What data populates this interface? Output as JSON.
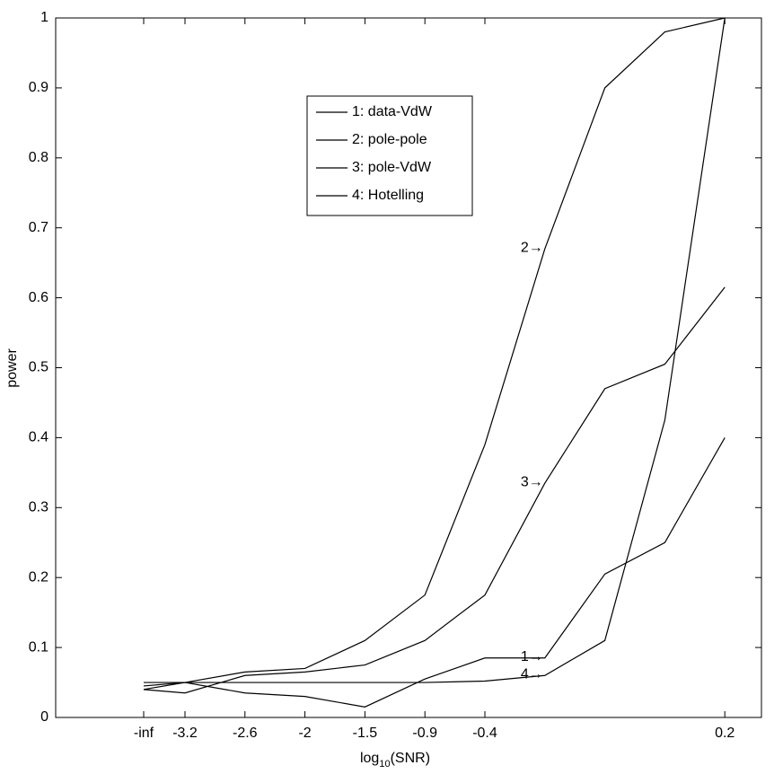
{
  "chart_data": {
    "type": "line",
    "xlabel": {
      "main": "log",
      "sub": "10",
      "rest": "(SNR)"
    },
    "ylabel": "power",
    "categories": [
      "-inf",
      "-3.2",
      "-2.6",
      "-2",
      "-1.5",
      "-0.9",
      "-0.4",
      null,
      null,
      null,
      "0.2"
    ],
    "ylim": [
      0,
      1
    ],
    "yticks": [
      0,
      0.1,
      0.2,
      0.3,
      0.4,
      0.5,
      0.6,
      0.7,
      0.8,
      0.9,
      1
    ],
    "grid": false,
    "legend": "upper center",
    "series": [
      {
        "name": "1: data-VdW",
        "label": "1→",
        "color": "#000000",
        "values": [
          0.04,
          0.05,
          0.035,
          0.03,
          0.015,
          0.055,
          0.085,
          0.085,
          0.205,
          0.25,
          0.4
        ]
      },
      {
        "name": "2: pole-pole",
        "label": "2→",
        "color": "#000000",
        "values": [
          0.045,
          0.05,
          0.065,
          0.07,
          0.11,
          0.175,
          0.39,
          0.67,
          0.9,
          0.98,
          1.0
        ]
      },
      {
        "name": "3: pole-VdW",
        "label": "3→",
        "color": "#000000",
        "values": [
          0.04,
          0.035,
          0.06,
          0.065,
          0.075,
          0.11,
          0.175,
          0.335,
          0.47,
          0.505,
          0.615
        ]
      },
      {
        "name": "4: Hotelling",
        "label": "4→",
        "color": "#000000",
        "values": [
          0.05,
          0.05,
          0.05,
          0.05,
          0.05,
          0.05,
          0.052,
          0.06,
          0.11,
          0.425,
          1.0
        ]
      }
    ]
  }
}
